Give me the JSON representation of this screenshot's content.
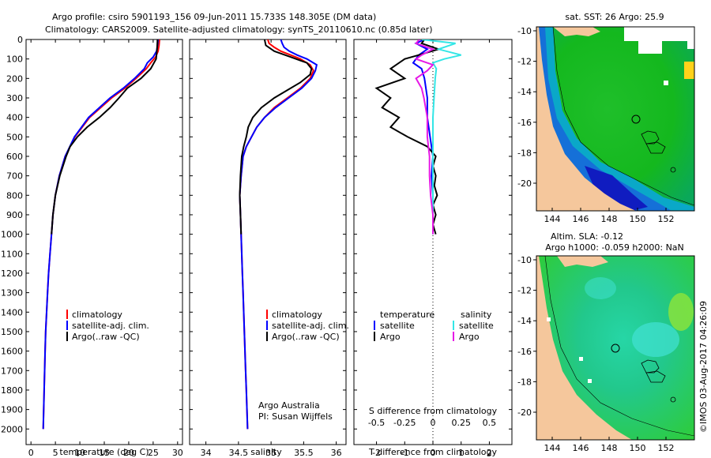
{
  "header": {
    "line1": "Argo profile: csiro 5901193_156 09-Jun-2011 15.733S 148.305E (DM data)",
    "line2": "Climatology: CARS2009. Satellite-adjusted climatology: synTS_20110610.nc (0.85d later)"
  },
  "footer_stamp": "©IMOS 03-Aug-2017 04:26:09",
  "colors": {
    "climatology": "#ff0000",
    "satellite": "#0000ff",
    "argo": "#000000",
    "sal_satellite": "#33e6e6",
    "sal_argo": "#e619e6",
    "land": "#f5c79c"
  },
  "legends": {
    "temp": {
      "climatology": "climatology",
      "satellite": "satellite-adj. clim.",
      "argo": "Argo(..raw -QC)"
    },
    "sal": {
      "climatology": "climatology",
      "satellite": "satellite-adj. clim.",
      "argo": "Argo(..raw -QC)"
    },
    "diff": {
      "temp_head": "temperature",
      "sal_head": "salinity",
      "temp_sat": "satellite",
      "temp_argo": "Argo",
      "sal_sat": "satellite",
      "sal_argo": "Argo"
    }
  },
  "credits": {
    "line1": "Argo Australia",
    "line2": "PI: Susan Wijffels"
  },
  "maps": {
    "top": {
      "title": "sat. SST: 26 Argo: 25.9"
    },
    "bottom": {
      "title1": "Altim. SLA: -0.12",
      "title2": "Argo h1000: -0.059 h2000: NaN"
    },
    "lat_ticks": [
      "-10",
      "-12",
      "-14",
      "-16",
      "-18",
      "-20"
    ],
    "lon_ticks": [
      "144",
      "146",
      "148",
      "150",
      "152"
    ]
  },
  "chart_data": [
    {
      "type": "line",
      "name": "temperature",
      "xlabel": "temperature (deg C)",
      "ylabel": "",
      "xlim": [
        -1,
        31
      ],
      "ylim": [
        2080,
        0
      ],
      "xticks": [
        "0",
        "5",
        "10",
        "15",
        "20",
        "25",
        "30"
      ],
      "yticks": [
        "0",
        "100",
        "200",
        "300",
        "400",
        "500",
        "600",
        "700",
        "800",
        "900",
        "1000",
        "1100",
        "1200",
        "1300",
        "1400",
        "1500",
        "1600",
        "1700",
        "1800",
        "1900",
        "2000"
      ],
      "series": [
        {
          "name": "climatology",
          "color": "#ff0000",
          "depth": [
            0,
            30,
            60,
            90,
            120,
            150,
            200,
            250,
            300,
            400,
            500,
            600,
            700,
            800,
            900,
            1000,
            1100,
            1200,
            1300,
            1400,
            1500,
            1600,
            1700,
            1800,
            1900,
            2000
          ],
          "values": [
            26.3,
            26.2,
            26.0,
            25.5,
            24.5,
            23.6,
            21.5,
            19.2,
            16.5,
            12.0,
            9.0,
            7.0,
            5.8,
            5.0,
            4.5,
            4.2,
            3.9,
            3.6,
            3.4,
            3.2,
            3.0,
            2.9,
            2.8,
            2.7,
            2.6,
            2.5
          ]
        },
        {
          "name": "satellite-adj. clim.",
          "color": "#0000ff",
          "depth": [
            0,
            30,
            60,
            90,
            120,
            150,
            200,
            250,
            300,
            400,
            500,
            600,
            700,
            800,
            900,
            1000,
            1100,
            1200,
            1300,
            1400,
            1500,
            1600,
            1700,
            1800,
            1900,
            2000
          ],
          "values": [
            26.0,
            25.9,
            25.7,
            25.0,
            23.8,
            23.2,
            21.2,
            18.9,
            16.2,
            11.8,
            8.9,
            7.0,
            5.8,
            5.0,
            4.5,
            4.2,
            3.9,
            3.6,
            3.4,
            3.2,
            3.0,
            2.9,
            2.8,
            2.7,
            2.6,
            2.5
          ]
        },
        {
          "name": "Argo(..raw -QC)",
          "color": "#000000",
          "depth": [
            0,
            50,
            100,
            150,
            200,
            250,
            300,
            350,
            400,
            450,
            500,
            550,
            600,
            700,
            800,
            900,
            1000
          ],
          "values": [
            25.9,
            25.8,
            25.6,
            24.5,
            22.5,
            19.7,
            18.0,
            16.2,
            14.0,
            11.5,
            9.5,
            8.0,
            7.2,
            5.9,
            5.0,
            4.5,
            4.2
          ]
        }
      ]
    },
    {
      "type": "line",
      "name": "salinity",
      "xlabel": "salinity",
      "ylabel": "",
      "xlim": [
        33.75,
        36.15
      ],
      "ylim": [
        2080,
        0
      ],
      "xticks": [
        "34",
        "34.5",
        "35",
        "35.5",
        "36"
      ],
      "series": [
        {
          "name": "climatology",
          "color": "#ff0000",
          "depth": [
            0,
            20,
            40,
            60,
            80,
            100,
            130,
            160,
            200,
            250,
            300,
            350,
            400,
            450,
            500,
            550,
            600,
            700,
            800,
            900,
            1000,
            1100,
            1200,
            1300,
            1400,
            1500,
            1600,
            1700,
            1800,
            1900,
            2000
          ],
          "values": [
            34.95,
            34.97,
            35.05,
            35.15,
            35.3,
            35.45,
            35.6,
            35.65,
            35.6,
            35.45,
            35.25,
            35.05,
            34.9,
            34.78,
            34.7,
            34.62,
            34.57,
            34.54,
            34.52,
            34.53,
            34.54,
            34.55,
            34.56,
            34.57,
            34.58,
            34.59,
            34.6,
            34.61,
            34.62,
            34.63,
            34.64
          ]
        },
        {
          "name": "satellite-adj. clim.",
          "color": "#0000ff",
          "depth": [
            0,
            20,
            40,
            60,
            80,
            100,
            130,
            160,
            200,
            250,
            300,
            350,
            400,
            450,
            500,
            550,
            600,
            700,
            800,
            900,
            1000,
            1100,
            1200,
            1300,
            1400,
            1500,
            1600,
            1700,
            1800,
            1900,
            2000
          ],
          "values": [
            35.15,
            35.17,
            35.2,
            35.28,
            35.4,
            35.55,
            35.7,
            35.68,
            35.62,
            35.47,
            35.27,
            35.07,
            34.9,
            34.78,
            34.7,
            34.62,
            34.57,
            34.54,
            34.52,
            34.53,
            34.54,
            34.55,
            34.56,
            34.57,
            34.58,
            34.59,
            34.6,
            34.61,
            34.62,
            34.63,
            34.64
          ]
        },
        {
          "name": "Argo(..raw -QC)",
          "color": "#000000",
          "depth": [
            0,
            30,
            60,
            90,
            120,
            150,
            180,
            220,
            260,
            300,
            350,
            400,
            450,
            500,
            550,
            600,
            700,
            800,
            900,
            1000
          ],
          "values": [
            34.9,
            34.92,
            35.05,
            35.3,
            35.55,
            35.62,
            35.6,
            35.45,
            35.25,
            35.05,
            34.85,
            34.72,
            34.65,
            34.62,
            34.58,
            34.55,
            34.53,
            34.52,
            34.53,
            34.54
          ]
        }
      ]
    },
    {
      "type": "line",
      "name": "difference",
      "xlabel": "T difference from climatology",
      "x2label": "S difference from climatology",
      "xlim": [
        -2.8,
        2.8
      ],
      "x2lim": [
        -0.7,
        0.7
      ],
      "ylim": [
        2080,
        0
      ],
      "xticks": [
        "-2",
        "-1",
        "0",
        "1",
        "2"
      ],
      "x2ticks": [
        "-0.5",
        "-0.25",
        "0",
        "0.25",
        "0.5"
      ],
      "series": [
        {
          "name": "temperature satellite",
          "color": "#0000ff",
          "axis": "T",
          "depth": [
            0,
            20,
            50,
            80,
            120,
            150,
            200,
            300,
            400,
            500,
            600,
            700,
            800,
            900,
            1000
          ],
          "values": [
            -0.3,
            -0.6,
            -0.2,
            -0.5,
            -0.7,
            -0.4,
            -0.3,
            -0.2,
            -0.2,
            -0.1,
            0,
            -0.05,
            0,
            0,
            0
          ]
        },
        {
          "name": "temperature Argo",
          "color": "#000000",
          "axis": "T",
          "depth": [
            0,
            20,
            50,
            80,
            100,
            150,
            200,
            250,
            300,
            350,
            400,
            450,
            500,
            550,
            600,
            650,
            700,
            750,
            800,
            850,
            900,
            950,
            1000
          ],
          "values": [
            -0.3,
            -0.4,
            0.2,
            -0.5,
            -1.0,
            -1.5,
            -1.0,
            -2.0,
            -1.5,
            -1.8,
            -1.2,
            -1.5,
            -0.9,
            -0.2,
            0.1,
            0.0,
            0.1,
            0.05,
            0.15,
            0.0,
            0.1,
            0.0,
            0.1
          ]
        },
        {
          "name": "salinity satellite",
          "color": "#33e6e6",
          "axis": "S",
          "depth": [
            0,
            20,
            50,
            80,
            100,
            120,
            150,
            200,
            300,
            400,
            500,
            600,
            700,
            800,
            900,
            1000
          ],
          "values": [
            -0.1,
            0.2,
            0.05,
            0.25,
            0.1,
            0.0,
            0.03,
            0.02,
            0.01,
            0.0,
            0.0,
            0.0,
            0.0,
            0.0,
            0.0,
            0.0
          ]
        },
        {
          "name": "salinity Argo",
          "color": "#e619e6",
          "axis": "S",
          "depth": [
            0,
            20,
            50,
            80,
            100,
            130,
            160,
            200,
            250,
            300,
            400,
            500,
            600,
            700,
            800,
            900,
            1000
          ],
          "values": [
            -0.12,
            -0.15,
            0.0,
            -0.1,
            -0.15,
            0.0,
            -0.05,
            -0.15,
            -0.1,
            -0.08,
            -0.05,
            -0.05,
            -0.03,
            -0.03,
            -0.02,
            0.0,
            0.0
          ]
        }
      ]
    }
  ]
}
